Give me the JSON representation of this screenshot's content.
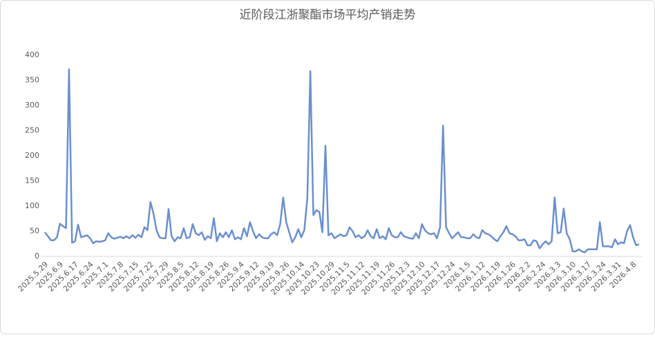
{
  "chart_data": {
    "type": "line",
    "title": "近阶段江浙聚酯市场平均产销走势",
    "categories": [
      "2025.5.29",
      null,
      null,
      null,
      null,
      "2025.6.9",
      null,
      null,
      null,
      null,
      "2025.6.17",
      null,
      null,
      null,
      null,
      "2025.6.24",
      null,
      null,
      null,
      null,
      "2025.7.1",
      null,
      null,
      null,
      null,
      "2025.7.8",
      null,
      null,
      null,
      null,
      "2025.7.15",
      null,
      null,
      null,
      null,
      "2025.7.22",
      null,
      null,
      null,
      null,
      "2025.7.29",
      null,
      null,
      null,
      null,
      "2025.8.5",
      null,
      null,
      null,
      null,
      "2025.8.12",
      null,
      null,
      null,
      null,
      "2025.8.19",
      null,
      null,
      null,
      null,
      "2025.8.26",
      null,
      null,
      null,
      null,
      "2025.9.4",
      null,
      null,
      null,
      null,
      "2025.9.12",
      null,
      null,
      null,
      null,
      "2025.9.19",
      null,
      null,
      null,
      null,
      "2025.9.26",
      null,
      null,
      null,
      null,
      "2025.10.14",
      null,
      null,
      null,
      null,
      "2025.10.23",
      null,
      null,
      null,
      null,
      "2025.10.29",
      null,
      null,
      null,
      null,
      "2025.11.5",
      null,
      null,
      null,
      null,
      "2025.11.12",
      null,
      null,
      null,
      null,
      "2025.11.19",
      null,
      null,
      null,
      null,
      "2025.11.26",
      null,
      null,
      null,
      null,
      "2025.12.3",
      null,
      null,
      null,
      null,
      "2025.12.10",
      null,
      null,
      null,
      null,
      "2025.12.17",
      null,
      null,
      null,
      null,
      "2025.12.24",
      null,
      null,
      null,
      null,
      "2026.1.5",
      null,
      null,
      null,
      null,
      "2026.1.12",
      null,
      null,
      null,
      null,
      "2026.1.19",
      null,
      null,
      null,
      null,
      "2026.1.26",
      null,
      null,
      null,
      null,
      "2026.2.2",
      null,
      null,
      null,
      null,
      "2026.2.24",
      null,
      null,
      null,
      null,
      "2026.3.3",
      null,
      null,
      null,
      null,
      "2026.3.10",
      null,
      null,
      null,
      null,
      "2026.3.17",
      null,
      null,
      null,
      null,
      "2026.3.24",
      null,
      null,
      null,
      null,
      "2026.3.31",
      null,
      null,
      null,
      null,
      "2026.4.8",
      null,
      null
    ],
    "values": [
      48,
      40,
      32,
      32,
      38,
      65,
      60,
      56,
      372,
      27,
      30,
      63,
      38,
      40,
      42,
      36,
      26,
      30,
      29,
      30,
      32,
      46,
      38,
      35,
      37,
      39,
      36,
      40,
      36,
      42,
      37,
      43,
      38,
      58,
      52,
      108,
      85,
      52,
      38,
      36,
      36,
      94,
      40,
      30,
      38,
      36,
      56,
      36,
      38,
      64,
      46,
      42,
      48,
      33,
      40,
      36,
      76,
      30,
      46,
      38,
      48,
      38,
      52,
      34,
      38,
      34,
      56,
      40,
      68,
      50,
      36,
      44,
      38,
      36,
      36,
      44,
      48,
      42,
      64,
      117,
      68,
      48,
      28,
      38,
      54,
      38,
      52,
      115,
      368,
      82,
      92,
      88,
      48,
      220,
      42,
      46,
      36,
      40,
      44,
      40,
      42,
      58,
      50,
      38,
      42,
      36,
      40,
      52,
      40,
      36,
      54,
      36,
      40,
      34,
      56,
      42,
      38,
      38,
      48,
      40,
      38,
      36,
      35,
      46,
      36,
      64,
      52,
      46,
      44,
      46,
      36,
      58,
      260,
      58,
      46,
      36,
      42,
      48,
      38,
      38,
      36,
      36,
      44,
      38,
      36,
      52,
      46,
      44,
      40,
      34,
      30,
      40,
      48,
      60,
      46,
      44,
      40,
      32,
      32,
      34,
      22,
      22,
      32,
      30,
      16,
      24,
      30,
      24,
      30,
      117,
      46,
      48,
      95,
      46,
      34,
      10,
      10,
      14,
      10,
      8,
      14,
      14,
      14,
      14,
      68,
      20,
      20,
      20,
      18,
      34,
      24,
      28,
      26,
      50,
      62,
      38,
      22,
      24
    ],
    "color": "#6a8fce",
    "ylim": [
      0,
      400
    ],
    "yticks": [
      0,
      50,
      100,
      150,
      200,
      250,
      300,
      350,
      400
    ],
    "grid": false
  }
}
